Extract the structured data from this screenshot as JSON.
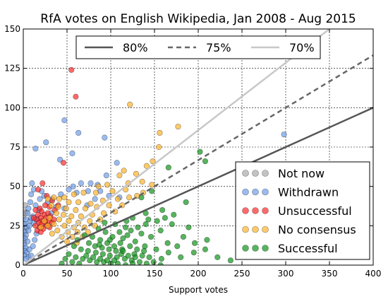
{
  "chart_data": {
    "type": "scatter",
    "title": "RfA votes on English Wikipedia, Jan 2008 - Aug 2015",
    "xlabel": "Support votes",
    "ylabel": "",
    "xlim": [
      0,
      400
    ],
    "ylim": [
      0,
      150
    ],
    "xticks": [
      "0",
      "50",
      "100",
      "150",
      "200",
      "250",
      "300",
      "350",
      "400"
    ],
    "yticks": [
      "0",
      "25",
      "50",
      "75",
      "100",
      "125",
      "150"
    ],
    "grid": true,
    "lines": [
      {
        "name": "80%",
        "slope": 0.25,
        "style": "solid",
        "color": "#555555"
      },
      {
        "name": "75%",
        "slope": 0.3333,
        "style": "dashed",
        "color": "#666666"
      },
      {
        "name": "70%",
        "slope": 0.4286,
        "style": "solid",
        "color": "#c8c8c8"
      }
    ],
    "line_legend_placement": "top-center",
    "series_legend_placement": "lower-right",
    "series": [
      {
        "name": "Not now",
        "color": "#aaaaaa",
        "points": [
          [
            2,
            38
          ],
          [
            1,
            34
          ],
          [
            0,
            30
          ],
          [
            3,
            33
          ],
          [
            1,
            26
          ],
          [
            2,
            22
          ],
          [
            0,
            18
          ],
          [
            1,
            15
          ]
        ]
      },
      {
        "name": "Withdrawn",
        "color": "#6f9ee8",
        "points": [
          [
            47,
            92
          ],
          [
            63,
            84
          ],
          [
            93,
            81
          ],
          [
            26,
            78
          ],
          [
            14,
            74
          ],
          [
            56,
            71
          ],
          [
            42,
            67
          ],
          [
            107,
            65
          ],
          [
            298,
            83
          ],
          [
            95,
            57
          ],
          [
            66,
            52
          ],
          [
            77,
            52
          ],
          [
            85,
            51
          ],
          [
            10,
            52
          ],
          [
            12,
            48
          ],
          [
            9,
            45
          ],
          [
            21,
            47
          ],
          [
            24,
            44
          ],
          [
            19,
            42
          ],
          [
            8,
            40
          ],
          [
            14,
            38
          ],
          [
            6,
            36
          ],
          [
            18,
            35
          ],
          [
            5,
            33
          ],
          [
            11,
            31
          ],
          [
            3,
            29
          ],
          [
            8,
            28
          ],
          [
            2,
            26
          ],
          [
            4,
            24
          ],
          [
            6,
            22
          ],
          [
            1,
            21
          ],
          [
            3,
            19
          ],
          [
            2,
            17
          ],
          [
            5,
            15
          ],
          [
            1,
            13
          ],
          [
            3,
            11
          ],
          [
            2,
            9
          ],
          [
            4,
            8
          ],
          [
            1,
            6
          ],
          [
            6,
            5
          ],
          [
            3,
            4
          ],
          [
            9,
            6
          ],
          [
            7,
            10
          ],
          [
            11,
            12
          ],
          [
            13,
            16
          ],
          [
            15,
            20
          ],
          [
            7,
            25
          ],
          [
            9,
            30
          ],
          [
            12,
            27
          ],
          [
            16,
            29
          ],
          [
            28,
            40
          ],
          [
            33,
            42
          ],
          [
            38,
            37
          ],
          [
            43,
            45
          ],
          [
            52,
            48
          ],
          [
            57,
            50
          ],
          [
            61,
            46
          ],
          [
            74,
            47
          ],
          [
            82,
            42
          ],
          [
            88,
            47
          ],
          [
            98,
            44
          ],
          [
            110,
            43
          ],
          [
            73,
            38
          ],
          [
            47,
            36
          ],
          [
            32,
            33
          ]
        ]
      },
      {
        "name": "Unsuccessful",
        "color": "#ff2a2a",
        "points": [
          [
            55,
            124
          ],
          [
            60,
            107
          ],
          [
            46,
            65
          ],
          [
            22,
            52
          ],
          [
            17,
            48
          ],
          [
            27,
            44
          ],
          [
            33,
            41
          ],
          [
            25,
            38
          ],
          [
            30,
            37
          ],
          [
            19,
            36
          ],
          [
            14,
            35
          ],
          [
            21,
            34
          ],
          [
            28,
            33
          ],
          [
            17,
            32
          ],
          [
            24,
            32
          ],
          [
            31,
            31
          ],
          [
            20,
            30
          ],
          [
            26,
            30
          ],
          [
            15,
            29
          ],
          [
            22,
            28
          ],
          [
            29,
            28
          ],
          [
            18,
            27
          ],
          [
            25,
            27
          ],
          [
            33,
            27
          ],
          [
            21,
            26
          ],
          [
            14,
            25
          ],
          [
            27,
            25
          ],
          [
            19,
            24
          ],
          [
            23,
            23
          ],
          [
            30,
            24
          ],
          [
            16,
            22
          ],
          [
            20,
            21
          ],
          [
            36,
            35
          ],
          [
            40,
            38
          ],
          [
            12,
            30
          ],
          [
            35,
            29
          ]
        ]
      },
      {
        "name": "No consensus",
        "color": "#ffb429",
        "points": [
          [
            122,
            102
          ],
          [
            156,
            84
          ],
          [
            177,
            88
          ],
          [
            155,
            75
          ],
          [
            148,
            66
          ],
          [
            141,
            63
          ],
          [
            115,
            60
          ],
          [
            129,
            58
          ],
          [
            110,
            57
          ],
          [
            136,
            53
          ],
          [
            120,
            52
          ],
          [
            96,
            51
          ],
          [
            86,
            50
          ],
          [
            102,
            47
          ],
          [
            83,
            46
          ],
          [
            69,
            46
          ],
          [
            58,
            45
          ],
          [
            47,
            43
          ],
          [
            41,
            42
          ],
          [
            35,
            43
          ],
          [
            28,
            42
          ],
          [
            52,
            40
          ],
          [
            63,
            40
          ],
          [
            77,
            39
          ],
          [
            91,
            41
          ],
          [
            108,
            42
          ],
          [
            121,
            43
          ],
          [
            137,
            46
          ],
          [
            147,
            51
          ],
          [
            32,
            38
          ],
          [
            40,
            37
          ],
          [
            49,
            36
          ],
          [
            60,
            35
          ],
          [
            71,
            36
          ],
          [
            84,
            37
          ],
          [
            98,
            38
          ],
          [
            113,
            38
          ],
          [
            38,
            33
          ],
          [
            46,
            32
          ],
          [
            55,
            31
          ],
          [
            66,
            31
          ],
          [
            79,
            32
          ],
          [
            92,
            33
          ],
          [
            105,
            34
          ],
          [
            30,
            30
          ],
          [
            41,
            29
          ],
          [
            52,
            28
          ],
          [
            63,
            27
          ],
          [
            76,
            28
          ],
          [
            88,
            29
          ],
          [
            35,
            26
          ],
          [
            47,
            25
          ],
          [
            58,
            24
          ],
          [
            70,
            24
          ],
          [
            82,
            25
          ],
          [
            39,
            22
          ],
          [
            51,
            21
          ],
          [
            62,
            21
          ],
          [
            74,
            21
          ],
          [
            44,
            18
          ],
          [
            56,
            18
          ],
          [
            68,
            18
          ],
          [
            50,
            15
          ],
          [
            61,
            14
          ],
          [
            28,
            25
          ],
          [
            24,
            28
          ],
          [
            20,
            24
          ],
          [
            33,
            20
          ],
          [
            117,
            48
          ],
          [
            130,
            44
          ]
        ]
      },
      {
        "name": "Successful",
        "color": "#10941a",
        "points": [
          [
            202,
            72
          ],
          [
            166,
            62
          ],
          [
            208,
            66
          ],
          [
            147,
            47
          ],
          [
            135,
            43
          ],
          [
            186,
            40
          ],
          [
            159,
            35
          ],
          [
            172,
            32
          ],
          [
            140,
            33
          ],
          [
            125,
            30
          ],
          [
            143,
            29
          ],
          [
            118,
            28
          ],
          [
            131,
            24
          ],
          [
            157,
            22
          ],
          [
            170,
            26
          ],
          [
            183,
            18
          ],
          [
            146,
            18
          ],
          [
            114,
            17
          ],
          [
            128,
            15
          ],
          [
            139,
            12
          ],
          [
            165,
            14
          ],
          [
            176,
            12
          ],
          [
            195,
            8
          ],
          [
            208,
            10
          ],
          [
            152,
            10
          ],
          [
            166,
            8
          ],
          [
            144,
            5
          ],
          [
            158,
            4
          ],
          [
            180,
            5
          ],
          [
            127,
            7
          ],
          [
            113,
            10
          ],
          [
            104,
            12
          ],
          [
            96,
            14
          ],
          [
            88,
            16
          ],
          [
            79,
            18
          ],
          [
            70,
            19
          ],
          [
            62,
            16
          ],
          [
            58,
            12
          ],
          [
            66,
            10
          ],
          [
            74,
            9
          ],
          [
            83,
            8
          ],
          [
            91,
            7
          ],
          [
            99,
            6
          ],
          [
            107,
            5
          ],
          [
            116,
            4
          ],
          [
            124,
            3
          ],
          [
            133,
            2
          ],
          [
            102,
            18
          ],
          [
            94,
            21
          ],
          [
            86,
            23
          ],
          [
            110,
            21
          ],
          [
            119,
            19
          ],
          [
            60,
            5
          ],
          [
            68,
            4
          ],
          [
            76,
            3
          ],
          [
            84,
            2
          ],
          [
            92,
            2
          ],
          [
            100,
            1
          ],
          [
            108,
            1
          ],
          [
            117,
            0
          ],
          [
            125,
            1
          ],
          [
            141,
            1
          ],
          [
            149,
            2
          ],
          [
            157,
            0
          ],
          [
            52,
            7
          ],
          [
            56,
            2
          ],
          [
            64,
            1
          ],
          [
            72,
            6
          ],
          [
            80,
            5
          ],
          [
            88,
            4
          ],
          [
            96,
            3
          ],
          [
            104,
            3
          ],
          [
            112,
            7
          ],
          [
            120,
            6
          ],
          [
            128,
            5
          ],
          [
            136,
            6
          ],
          [
            82,
            12
          ],
          [
            90,
            11
          ],
          [
            98,
            10
          ],
          [
            106,
            9
          ],
          [
            114,
            9
          ],
          [
            122,
            12
          ],
          [
            130,
            10
          ],
          [
            138,
            9
          ],
          [
            75,
            14
          ],
          [
            87,
            13
          ],
          [
            99,
            16
          ],
          [
            111,
            14
          ],
          [
            123,
            22
          ],
          [
            135,
            20
          ],
          [
            93,
            27
          ],
          [
            105,
            26
          ],
          [
            117,
            24
          ],
          [
            140,
            26
          ],
          [
            48,
            4
          ],
          [
            44,
            1
          ],
          [
            153,
            28
          ],
          [
            162,
            30
          ],
          [
            189,
            24
          ],
          [
            210,
            16
          ],
          [
            222,
            5
          ],
          [
            237,
            3
          ],
          [
            196,
            14
          ]
        ]
      }
    ]
  }
}
